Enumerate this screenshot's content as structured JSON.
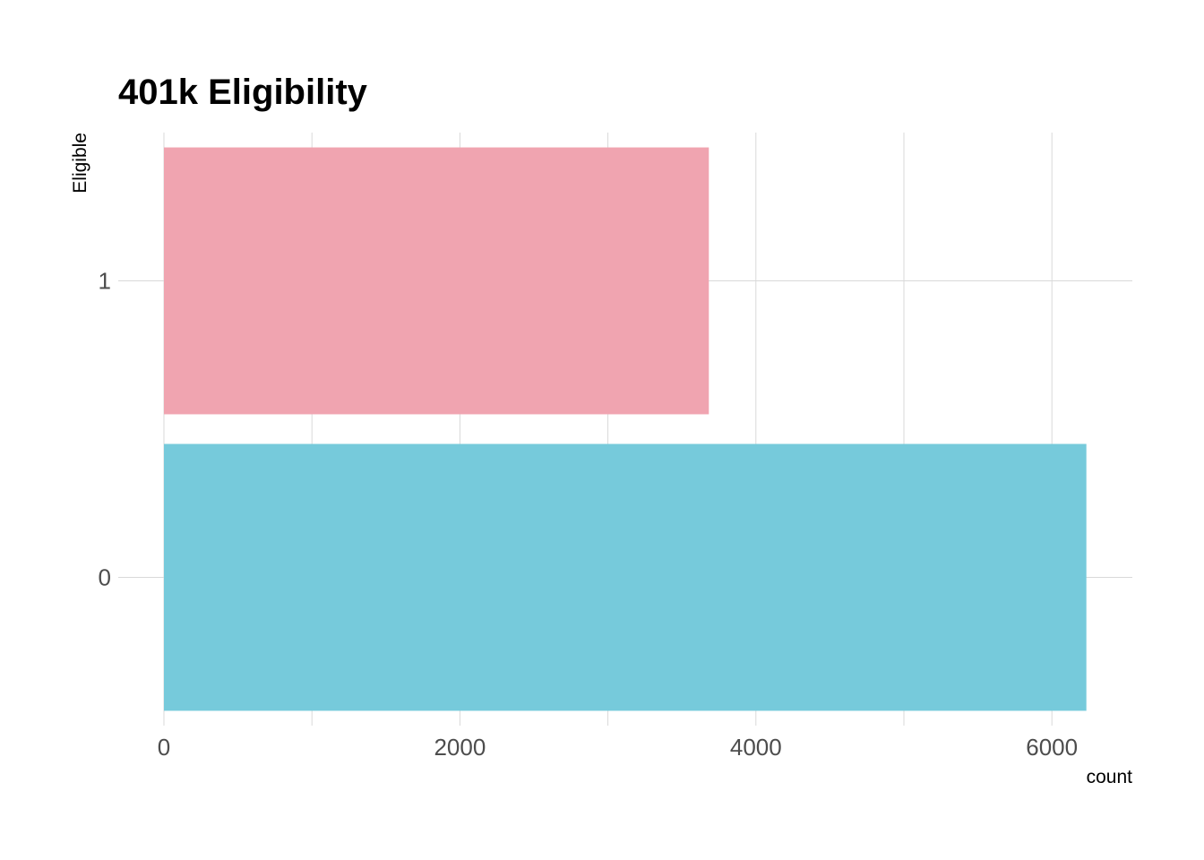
{
  "chart_data": {
    "type": "bar",
    "orientation": "horizontal",
    "title": "401k Eligibility",
    "xlabel": "count",
    "ylabel": "Eligible",
    "categories": [
      "0",
      "1"
    ],
    "values": [
      6233,
      3682
    ],
    "colors": [
      "#76CADB",
      "#F0A4B0"
    ],
    "xlim": [
      0,
      6540
    ],
    "xticks": [
      0,
      2000,
      4000,
      6000
    ],
    "xtick_labels": [
      "0",
      "2000",
      "4000",
      "6000"
    ],
    "grid": true,
    "legend": "none"
  }
}
